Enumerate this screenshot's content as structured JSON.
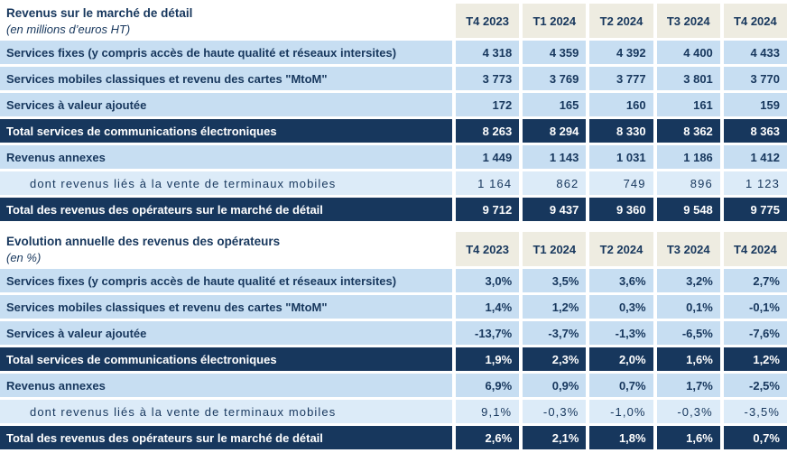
{
  "colors": {
    "navy_dark": "#17375d",
    "navy_text": "#17375d",
    "row_blue": "#c7def2",
    "row_blue_light": "#dcebf8",
    "header_beige": "#eeece1",
    "total_text": "#ffffff"
  },
  "table1": {
    "title": "Revenus sur le marché de détail",
    "subtitle": "(en millions d’euros HT)",
    "columns": [
      "T4 2023",
      "T1 2024",
      "T2 2024",
      "T3 2024",
      "T4 2024"
    ],
    "rows": [
      {
        "label": "Services fixes (y compris accès de haute qualité et réseaux intersites)",
        "values": [
          "4 318",
          "4 359",
          "4 392",
          "4 400",
          "4 433"
        ],
        "style": "normal"
      },
      {
        "label": "Services mobiles classiques et revenu des cartes \"MtoM\"",
        "values": [
          "3 773",
          "3 769",
          "3 777",
          "3 801",
          "3 770"
        ],
        "style": "normal"
      },
      {
        "label": "Services à valeur ajoutée",
        "values": [
          "172",
          "165",
          "160",
          "161",
          "159"
        ],
        "style": "normal"
      },
      {
        "label": "Total services de communications électroniques",
        "values": [
          "8 263",
          "8 294",
          "8 330",
          "8 362",
          "8 363"
        ],
        "style": "total"
      },
      {
        "label": "Revenus annexes",
        "values": [
          "1 449",
          "1 143",
          "1 031",
          "1 186",
          "1 412"
        ],
        "style": "normal"
      },
      {
        "label": "dont revenus liés à la vente de terminaux mobiles",
        "values": [
          "1 164",
          "862",
          "749",
          "896",
          "1 123"
        ],
        "style": "sub"
      },
      {
        "label": "Total des revenus des opérateurs sur le marché de détail",
        "values": [
          "9 712",
          "9 437",
          "9 360",
          "9 548",
          "9 775"
        ],
        "style": "total"
      }
    ]
  },
  "table2": {
    "title": "Evolution annuelle des revenus des opérateurs",
    "subtitle": "(en %)",
    "columns": [
      "T4 2023",
      "T1 2024",
      "T2 2024",
      "T3 2024",
      "T4 2024"
    ],
    "rows": [
      {
        "label": "Services fixes (y compris accès de haute qualité et réseaux intersites)",
        "values": [
          "3,0%",
          "3,5%",
          "3,6%",
          "3,2%",
          "2,7%"
        ],
        "style": "normal"
      },
      {
        "label": "Services mobiles classiques et revenu des cartes \"MtoM\"",
        "values": [
          "1,4%",
          "1,2%",
          "0,3%",
          "0,1%",
          "-0,1%"
        ],
        "style": "normal"
      },
      {
        "label": "Services à valeur ajoutée",
        "values": [
          "-13,7%",
          "-3,7%",
          "-1,3%",
          "-6,5%",
          "-7,6%"
        ],
        "style": "normal"
      },
      {
        "label": "Total services de communications électroniques",
        "values": [
          "1,9%",
          "2,3%",
          "2,0%",
          "1,6%",
          "1,2%"
        ],
        "style": "total"
      },
      {
        "label": "Revenus annexes",
        "values": [
          "6,9%",
          "0,9%",
          "0,7%",
          "1,7%",
          "-2,5%"
        ],
        "style": "normal"
      },
      {
        "label": "dont revenus liés à la vente de terminaux mobiles",
        "values": [
          "9,1%",
          "-0,3%",
          "-1,0%",
          "-0,3%",
          "-3,5%"
        ],
        "style": "sub"
      },
      {
        "label": "Total des revenus des opérateurs sur le marché de détail",
        "values": [
          "2,6%",
          "2,1%",
          "1,8%",
          "1,6%",
          "0,7%"
        ],
        "style": "total"
      }
    ]
  }
}
